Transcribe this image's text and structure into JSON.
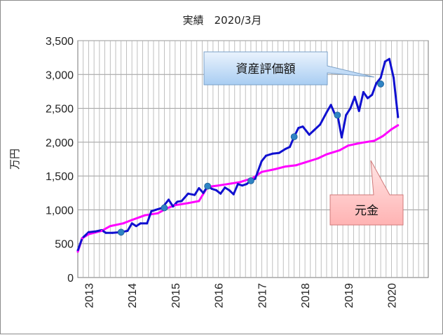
{
  "chart_data": {
    "type": "line",
    "title": "実績　2020/3月",
    "ylabel": "万円",
    "xlabel": "",
    "ylim": [
      0,
      3500
    ],
    "yticks": [
      "0",
      "500",
      "1,000",
      "1,500",
      "2,000",
      "2,500",
      "3,000",
      "3,500"
    ],
    "ytick_values": [
      0,
      500,
      1000,
      1500,
      2000,
      2500,
      3000,
      3500
    ],
    "xlim": [
      2012.75,
      2020.85
    ],
    "xticks": [
      "2013",
      "2014",
      "2015",
      "2016",
      "2017",
      "2018",
      "2019",
      "2020"
    ],
    "xtick_values": [
      2013.0,
      2014.0,
      2015.0,
      2016.0,
      2017.0,
      2018.0,
      2019.0,
      2020.0
    ],
    "grid": true,
    "series": [
      {
        "name": "資産評価額",
        "color": "#1010d0",
        "x": [
          2012.75,
          2012.85,
          2013.0,
          2013.15,
          2013.3,
          2013.4,
          2013.55,
          2013.75,
          2013.9,
          2014.0,
          2014.1,
          2014.2,
          2014.35,
          2014.45,
          2014.55,
          2014.7,
          2014.85,
          2014.95,
          2015.05,
          2015.15,
          2015.3,
          2015.45,
          2015.55,
          2015.65,
          2015.75,
          2015.85,
          2015.95,
          2016.05,
          2016.15,
          2016.25,
          2016.35,
          2016.45,
          2016.55,
          2016.65,
          2016.75,
          2016.85,
          2017.0,
          2017.1,
          2017.25,
          2017.4,
          2017.55,
          2017.65,
          2017.75,
          2017.85,
          2017.95,
          2018.1,
          2018.2,
          2018.35,
          2018.5,
          2018.6,
          2018.7,
          2018.75,
          2018.85,
          2018.95,
          2019.05,
          2019.15,
          2019.25,
          2019.35,
          2019.45,
          2019.55,
          2019.65,
          2019.75,
          2019.85,
          2019.95,
          2020.05,
          2020.15
        ],
        "values": [
          400,
          580,
          670,
          680,
          700,
          660,
          660,
          670,
          690,
          800,
          760,
          800,
          800,
          980,
          1000,
          1030,
          1150,
          1050,
          1120,
          1130,
          1240,
          1220,
          1320,
          1250,
          1350,
          1310,
          1290,
          1240,
          1330,
          1290,
          1230,
          1380,
          1360,
          1380,
          1430,
          1460,
          1720,
          1800,
          1830,
          1840,
          1900,
          1930,
          2080,
          2210,
          2230,
          2110,
          2170,
          2260,
          2440,
          2550,
          2400,
          2410,
          2070,
          2400,
          2500,
          2670,
          2460,
          2740,
          2650,
          2700,
          2870,
          2950,
          3190,
          3230,
          2950,
          2370
        ]
      },
      {
        "name": "元金",
        "color": "#ff00ff",
        "x": [
          2012.75,
          2012.85,
          2013.0,
          2013.3,
          2013.5,
          2013.8,
          2014.0,
          2014.3,
          2014.6,
          2014.8,
          2015.0,
          2015.3,
          2015.55,
          2015.75,
          2016.0,
          2016.3,
          2016.5,
          2016.8,
          2017.0,
          2017.3,
          2017.55,
          2017.8,
          2018.0,
          2018.3,
          2018.5,
          2018.8,
          2019.0,
          2019.3,
          2019.6,
          2019.8,
          2020.0,
          2020.15
        ],
        "values": [
          380,
          580,
          640,
          690,
          760,
          800,
          850,
          920,
          950,
          1020,
          1070,
          1100,
          1130,
          1340,
          1360,
          1390,
          1410,
          1470,
          1560,
          1600,
          1640,
          1660,
          1700,
          1760,
          1820,
          1880,
          1950,
          1990,
          2020,
          2090,
          2190,
          2250
        ]
      }
    ],
    "markers": {
      "color": "#2f84c4",
      "x": [
        2013.75,
        2014.75,
        2015.75,
        2016.75,
        2017.75,
        2018.75,
        2019.75
      ],
      "values": [
        670,
        1030,
        1350,
        1430,
        2080,
        2400,
        2860
      ]
    },
    "annotations": [
      {
        "text": "資産評価額",
        "series": "資産評価額"
      },
      {
        "text": "元金",
        "series": "元金"
      }
    ]
  }
}
